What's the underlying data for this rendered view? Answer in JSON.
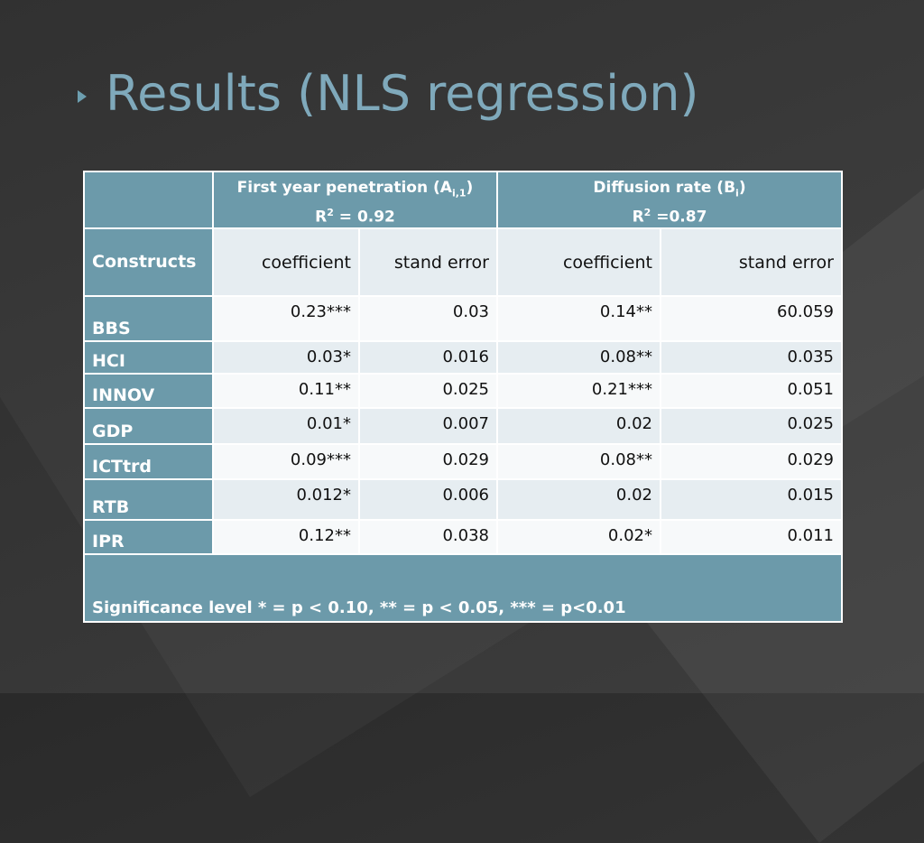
{
  "slide": {
    "title": "Results (NLS regression)"
  },
  "table": {
    "group_headers": [
      {
        "label_main": "First year penetration (A",
        "label_sub": "i,1",
        "label_close": ")",
        "r2_label": "R",
        "r2_sup": "2",
        "r2_value": " = 0.92"
      },
      {
        "label_main": "Diffusion rate (B",
        "label_sub": "i",
        "label_close": ")",
        "r2_label": "R",
        "r2_sup": "2",
        "r2_value": " =0.87"
      }
    ],
    "constructs_label": "Constructs",
    "subheaders": [
      "coefficient",
      "stand error",
      "coefficient",
      "stand error"
    ],
    "rows": [
      {
        "name": "BBS",
        "a_coef": "0.23***",
        "a_se": "0.03",
        "b_coef": "0.14**",
        "b_se": "60.059"
      },
      {
        "name": "HCI",
        "a_coef": "0.03*",
        "a_se": "0.016",
        "b_coef": "0.08**",
        "b_se": "0.035"
      },
      {
        "name": "INNOV",
        "a_coef": "0.11**",
        "a_se": "0.025",
        "b_coef": "0.21***",
        "b_se": "0.051"
      },
      {
        "name": "GDP",
        "a_coef": "0.01*",
        "a_se": "0.007",
        "b_coef": "0.02",
        "b_se": "0.025"
      },
      {
        "name": "ICTtrd",
        "a_coef": "0.09***",
        "a_se": "0.029",
        "b_coef": "0.08**",
        "b_se": "0.029"
      },
      {
        "name": "RTB",
        "a_coef": "0.012*",
        "a_se": "0.006",
        "b_coef": "0.02",
        "b_se": "0.015"
      },
      {
        "name": "IPR",
        "a_coef": "0.12**",
        "a_se": "0.038",
        "b_coef": "0.02*",
        "b_se": "0.011"
      }
    ],
    "footnote": "Significance level * = p < 0.10, ** = p < 0.05, *** = p<0.01"
  },
  "colors": {
    "header_blue": "#6c9aaa",
    "title_blue": "#7fa9bb",
    "row_light": "#e6edf1"
  }
}
